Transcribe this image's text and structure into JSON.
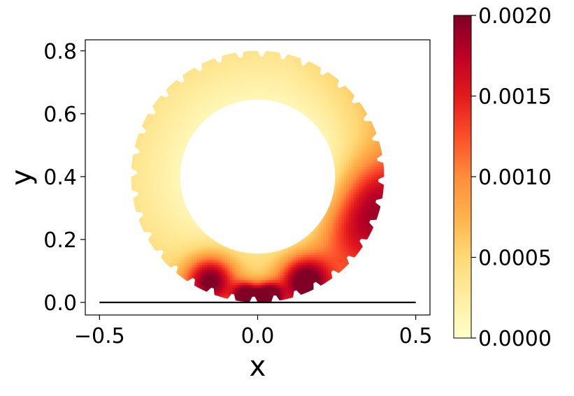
{
  "chart_data": {
    "type": "heatmap",
    "title": "",
    "xlabel": "x",
    "ylabel": "y",
    "xlim": [
      -0.545,
      0.545
    ],
    "ylim": [
      -0.04,
      0.835
    ],
    "x_ticks": [
      -0.5,
      0.0,
      0.5
    ],
    "x_tick_labels": [
      "−0.5",
      "0.0",
      "0.5"
    ],
    "y_ticks": [
      0.0,
      0.2,
      0.4,
      0.6,
      0.8
    ],
    "y_tick_labels": [
      "0.0",
      "0.2",
      "0.4",
      "0.6",
      "0.8"
    ],
    "grid": false,
    "ring": {
      "center": [
        0.0,
        0.4
      ],
      "inner_radius": 0.245,
      "outer_radius": 0.4,
      "notch_count": 36,
      "notch_depth": 0.018
    },
    "ground_line": {
      "x": [
        -0.5,
        0.5
      ],
      "y": [
        0.0,
        0.0
      ]
    },
    "hotspots": [
      {
        "x": -0.035,
        "y": 0.02,
        "value": 0.002
      },
      {
        "x": 0.035,
        "y": 0.02,
        "value": 0.002
      },
      {
        "x": -0.15,
        "y": 0.07,
        "value": 0.0016
      },
      {
        "x": 0.15,
        "y": 0.07,
        "value": 0.0016
      },
      {
        "x": 0.38,
        "y": 0.34,
        "value": 0.0009
      },
      {
        "x": 0.3,
        "y": 0.22,
        "value": 0.0008
      }
    ],
    "colorbar": {
      "colormap": "YlOrRd",
      "min": 0.0,
      "max": 0.002,
      "ticks": [
        0.0,
        0.0005,
        0.001,
        0.0015,
        0.002
      ],
      "tick_labels": [
        "0.0000",
        "0.0005",
        "0.0010",
        "0.0015",
        "0.0020"
      ],
      "colors": [
        "#ffffcc",
        "#ffeda0",
        "#fed976",
        "#feb24c",
        "#fd8d3c",
        "#fc4e2a",
        "#e31a1c",
        "#bd0026",
        "#800026"
      ]
    }
  }
}
